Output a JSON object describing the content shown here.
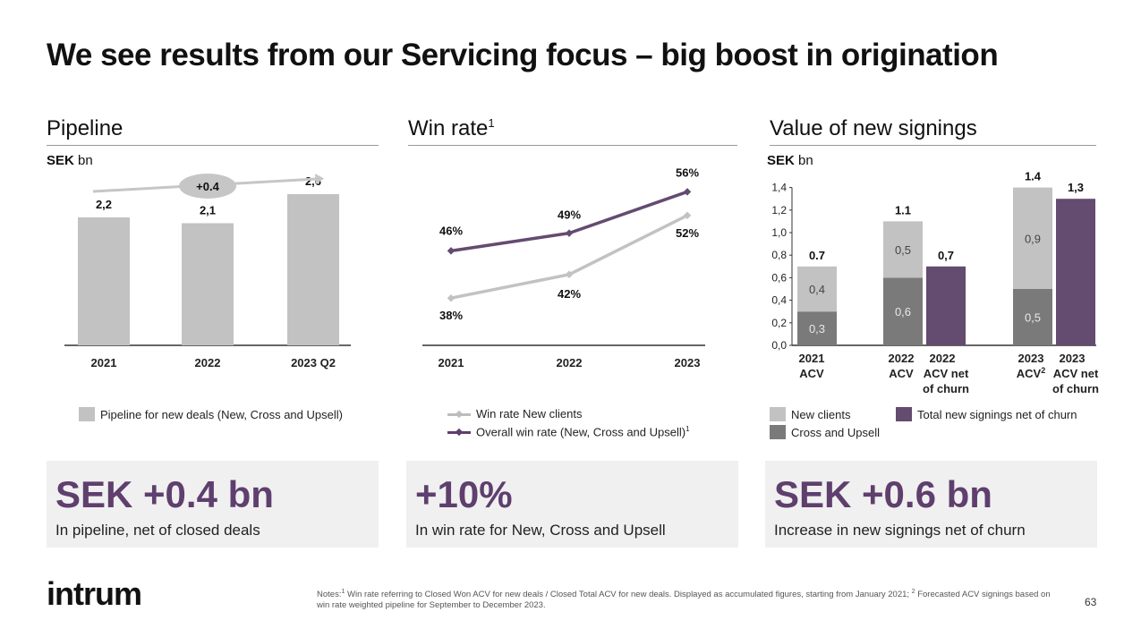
{
  "title": "We see results from our Servicing focus – big boost in origination",
  "panels": {
    "pipeline": {
      "title": "Pipeline",
      "unit_bold": "SEK",
      "unit_rest": " bn",
      "legend": "Pipeline for new deals (New, Cross and Upsell)",
      "badge": "+0.4"
    },
    "winrate": {
      "title": "Win rate",
      "title_sup": "1",
      "legend_grey": "Win rate New clients",
      "legend_purple": "Overall win rate (New, Cross and Upsell)",
      "legend_purple_sup": "1"
    },
    "signings": {
      "title": "Value of new signings",
      "unit_bold": "SEK",
      "unit_rest": " bn",
      "legend_new": "New clients",
      "legend_cross": "Cross and Upsell",
      "legend_total": "Total new signings net of churn"
    }
  },
  "kpis": [
    {
      "value": "SEK +0.4 bn",
      "caption": "In pipeline, net of closed deals"
    },
    {
      "value": "+10%",
      "caption": "In win rate for New, Cross and Upsell"
    },
    {
      "value": "SEK +0.6 bn",
      "caption": "Increase in new signings net of churn"
    }
  ],
  "colors": {
    "grey_light": "#c2c2c2",
    "grey_dark": "#7a7a7a",
    "purple": "#644b70",
    "kpi_text": "#5e3f6d"
  },
  "logo": "intrum",
  "notes": {
    "sup1": "1",
    "text1": " Win rate referring to Closed Won ACV for new deals / Closed Total ACV for new deals. Displayed as accumulated figures, starting from January 2021; ",
    "sup2": "2",
    "text2": " Forecasted ACV signings based on win rate weighted pipeline for September to December 2023.",
    "prefix": "Notes:"
  },
  "page_number": "63",
  "chart_data": [
    {
      "type": "bar",
      "title": "Pipeline",
      "ylabel": "SEK bn",
      "categories": [
        "2021",
        "2022",
        "2023 Q2"
      ],
      "values": [
        2.2,
        2.1,
        2.6
      ],
      "value_labels": [
        "2,2",
        "2,1",
        "2,6"
      ],
      "annotation": "+0.4",
      "legend": "Pipeline for new deals (New, Cross and Upsell)"
    },
    {
      "type": "line",
      "title": "Win rate",
      "categories": [
        "2021",
        "2022",
        "2023"
      ],
      "series": [
        {
          "name": "Win rate New clients",
          "values": [
            38,
            42,
            52
          ],
          "labels": [
            "38%",
            "42%",
            "52%"
          ]
        },
        {
          "name": "Overall win rate (New, Cross and Upsell)",
          "values": [
            46,
            49,
            56
          ],
          "labels": [
            "46%",
            "49%",
            "56%"
          ]
        }
      ],
      "ylim": [
        30,
        60
      ]
    },
    {
      "type": "bar",
      "title": "Value of new signings",
      "ylabel": "SEK bn",
      "ylim": [
        0,
        1.4
      ],
      "y_ticks": [
        "0,0",
        "0,2",
        "0,4",
        "0,6",
        "0,8",
        "1,0",
        "1,2",
        "1,4"
      ],
      "groups": [
        {
          "stacked": {
            "label_lines": [
              "2021",
              "ACV"
            ],
            "cross": 0.3,
            "cross_label": "0,3",
            "new": 0.4,
            "new_label": "0,4",
            "total_label": "0.7"
          },
          "net": null
        },
        {
          "stacked": {
            "label_lines": [
              "2022",
              "ACV"
            ],
            "cross": 0.6,
            "cross_label": "0,6",
            "new": 0.5,
            "new_label": "0,5",
            "total_label": "1.1"
          },
          "net": {
            "label_lines": [
              "2022",
              "ACV net",
              "of churn"
            ],
            "value": 0.7,
            "value_label": "0,7"
          }
        },
        {
          "stacked": {
            "label_lines": [
              "2023",
              "ACV"
            ],
            "label_sup": "2",
            "cross": 0.5,
            "cross_label": "0,5",
            "new": 0.9,
            "new_label": "0,9",
            "total_label": "1.4"
          },
          "net": {
            "label_lines": [
              "2023",
              "ACV net",
              "of churn"
            ],
            "value": 1.3,
            "value_label": "1,3"
          }
        }
      ]
    }
  ]
}
